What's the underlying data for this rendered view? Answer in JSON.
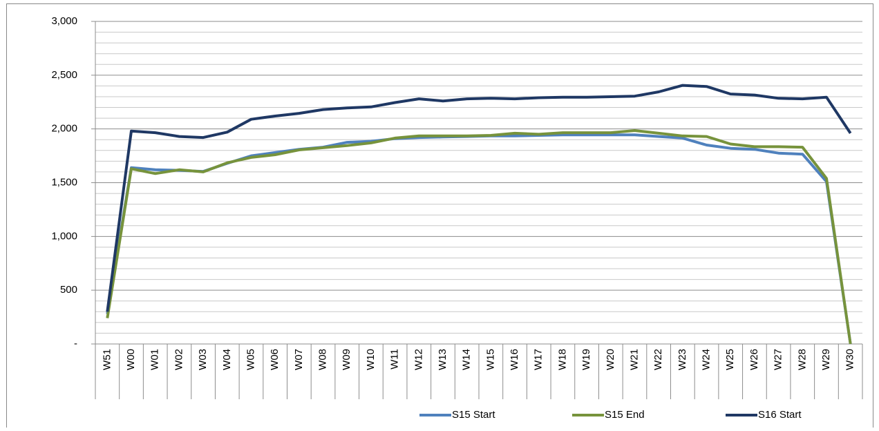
{
  "chart_data": {
    "type": "line",
    "categories": [
      "W51",
      "W00",
      "W01",
      "W02",
      "W03",
      "W04",
      "W05",
      "W06",
      "W07",
      "W08",
      "W09",
      "W10",
      "W11",
      "W12",
      "W13",
      "W14",
      "W15",
      "W16",
      "W17",
      "W18",
      "W19",
      "W20",
      "W21",
      "W22",
      "W23",
      "W24",
      "W25",
      "W26",
      "W27",
      "W28",
      "W29",
      "W30"
    ],
    "series": [
      {
        "name": "S15 Start",
        "color": "#4f81bd",
        "values": [
          280,
          1640,
          1620,
          1615,
          1605,
          1680,
          1750,
          1780,
          1810,
          1830,
          1875,
          1885,
          1910,
          1920,
          1925,
          1930,
          1935,
          1935,
          1940,
          1945,
          1945,
          1945,
          1945,
          1930,
          1915,
          1850,
          1820,
          1810,
          1775,
          1765,
          1510,
          0
        ]
      },
      {
        "name": "S15 End",
        "color": "#77933c",
        "values": [
          240,
          1630,
          1585,
          1620,
          1600,
          1685,
          1735,
          1760,
          1805,
          1825,
          1845,
          1870,
          1915,
          1935,
          1935,
          1935,
          1940,
          1960,
          1950,
          1965,
          1965,
          1965,
          1985,
          1960,
          1935,
          1930,
          1860,
          1835,
          1835,
          1830,
          1540,
          0
        ]
      },
      {
        "name": "S16 Start",
        "color": "#1f3864",
        "values": [
          300,
          1980,
          1965,
          1930,
          1920,
          1970,
          2090,
          2120,
          2145,
          2180,
          2195,
          2205,
          2245,
          2280,
          2260,
          2280,
          2285,
          2280,
          2290,
          2295,
          2295,
          2300,
          2305,
          2345,
          2405,
          2395,
          2325,
          2315,
          2285,
          2280,
          2295,
          1960
        ]
      }
    ],
    "ylim": [
      0,
      3000
    ],
    "yticks": [
      {
        "value": 0,
        "label": "-"
      },
      500,
      {
        "value": 1000,
        "label": "1,000"
      },
      {
        "value": 1500,
        "label": "1,500"
      },
      {
        "value": 2000,
        "label": "2,000"
      },
      {
        "value": 2500,
        "label": "2,500"
      },
      {
        "value": 3000,
        "label": "3,000"
      }
    ],
    "yminorticks": [
      100,
      200,
      300,
      400,
      600,
      700,
      800,
      900,
      1100,
      1200,
      1300,
      1400,
      1600,
      1700,
      1800,
      1900,
      2100,
      2200,
      2300,
      2400,
      2600,
      2700,
      2800,
      2900
    ],
    "grid": true,
    "legend": "bottom"
  }
}
